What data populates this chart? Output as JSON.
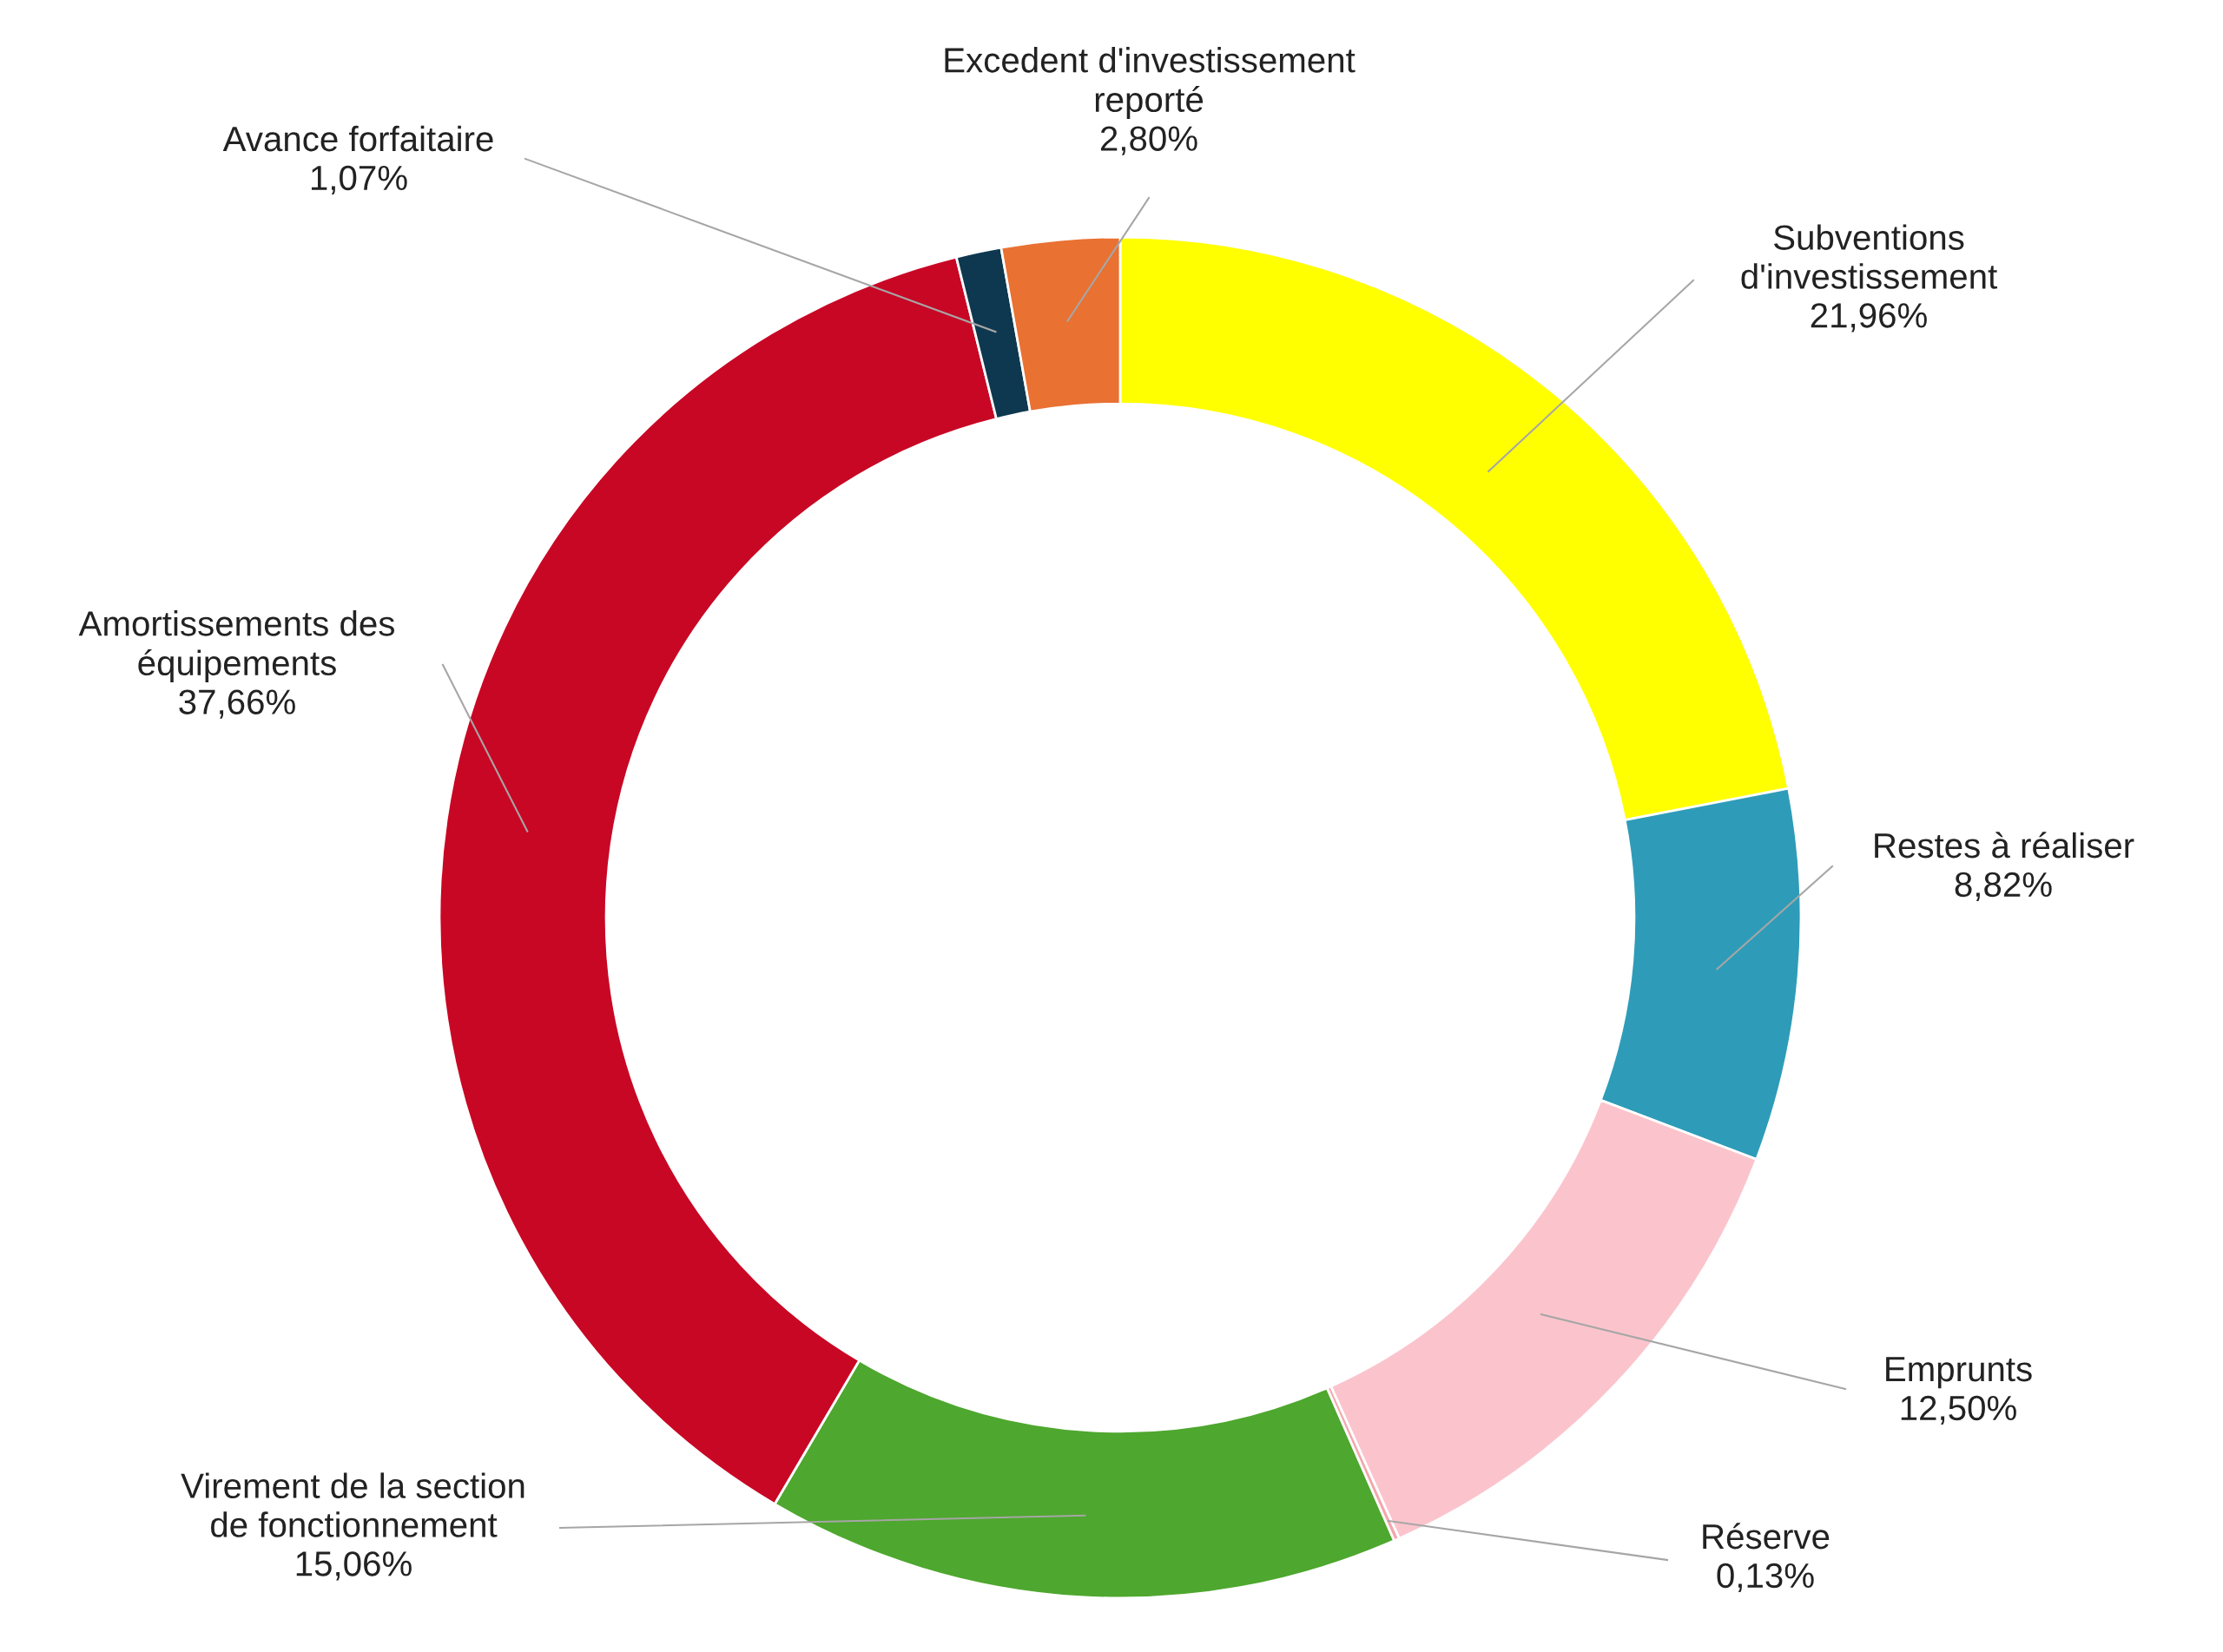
{
  "chart_data": {
    "type": "donut",
    "categories": [
      "Subventions d'investissement",
      "Restes à réaliser",
      "Emprunts",
      "Réserve",
      "Virement de la section de fonctionnement",
      "Amortissements des équipements",
      "Avance forfaitaire",
      "Excedent d'investissement reporté"
    ],
    "values": [
      21.96,
      8.82,
      12.5,
      0.13,
      15.06,
      37.66,
      1.07,
      2.8
    ],
    "value_labels": [
      "21,96%",
      "8,82%",
      "12,50%",
      "0,13%",
      "15,06%",
      "37,66%",
      "1,07%",
      "2,80%"
    ],
    "colors": [
      "#ffff00",
      "#2e9cb8",
      "#fbc4cc",
      "#f4a6ae",
      "#4ea72e",
      "#c80725",
      "#0e384f",
      "#e97132"
    ],
    "legend": false
  }
}
